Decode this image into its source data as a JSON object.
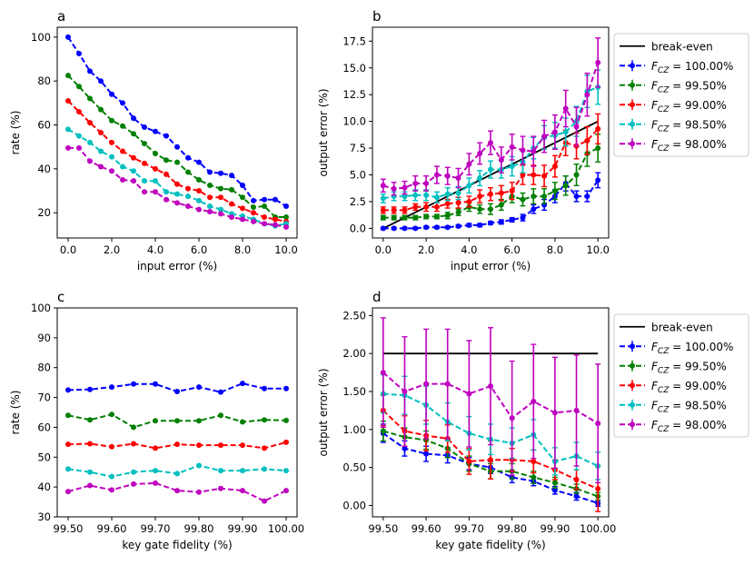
{
  "chart_data": [
    {
      "panel_label": "a",
      "type": "line",
      "xlabel": "input error (%)",
      "ylabel": "rate (%)",
      "xlim": [
        -0.5,
        10.5
      ],
      "ylim": [
        8.5,
        104.5
      ],
      "xticks": [
        0,
        2,
        4,
        6,
        8,
        10
      ],
      "xtick_labels": [
        "0.0",
        "2.0",
        "4.0",
        "6.0",
        "8.0",
        "10.0"
      ],
      "yticks": [
        20,
        40,
        60,
        80,
        100
      ],
      "ytick_labels": [
        "20",
        "40",
        "60",
        "80",
        "100"
      ],
      "x": [
        0,
        0.5,
        1,
        1.5,
        2,
        2.5,
        3,
        3.5,
        4,
        4.5,
        5,
        5.5,
        6,
        6.5,
        7,
        7.5,
        8,
        8.5,
        9,
        9.5,
        10
      ],
      "series": [
        {
          "color": "#0000ff",
          "values": [
            100,
            92.5,
            84.5,
            80,
            74,
            70,
            63,
            59,
            57,
            55,
            50,
            45,
            43,
            38.5,
            38,
            37,
            32.5,
            25.5,
            26,
            26,
            23
          ]
        },
        {
          "color": "#008000",
          "values": [
            82.5,
            77.5,
            72,
            67,
            62,
            59.5,
            56,
            51.5,
            47,
            44,
            43,
            38.5,
            35,
            32.5,
            31,
            30.5,
            27,
            22.5,
            23,
            18,
            18
          ]
        },
        {
          "color": "#ff0000",
          "values": [
            71,
            66,
            61,
            56.5,
            52,
            48,
            45,
            42.5,
            40,
            37.5,
            33,
            31,
            30,
            27,
            27,
            24,
            22,
            20,
            18,
            17,
            16
          ]
        },
        {
          "color": "#00bfbf",
          "values": [
            58,
            55,
            52,
            48,
            45.5,
            41,
            39,
            34.5,
            34.5,
            29.5,
            28.5,
            27.5,
            25.5,
            23,
            21.5,
            19.5,
            18.5,
            17,
            15,
            14,
            15
          ]
        },
        {
          "color": "#bf00bf",
          "values": [
            49.5,
            49.5,
            43.5,
            41,
            39,
            35,
            34.5,
            29.5,
            29.5,
            26,
            24.5,
            23,
            21.5,
            20.5,
            19.5,
            18,
            17,
            16,
            15,
            14.5,
            13.5
          ]
        }
      ]
    },
    {
      "panel_label": "b",
      "type": "line",
      "xlabel": "input error (%)",
      "ylabel": "output error (%)",
      "xlim": [
        -0.5,
        10.5
      ],
      "ylim": [
        -0.9,
        18.8
      ],
      "xticks": [
        0,
        2,
        4,
        6,
        8,
        10
      ],
      "xtick_labels": [
        "0.0",
        "2.0",
        "4.0",
        "6.0",
        "8.0",
        "10.0"
      ],
      "yticks": [
        0,
        2.5,
        5,
        7.5,
        10,
        12.5,
        15,
        17.5
      ],
      "ytick_labels": [
        "0.0",
        "2.5",
        "5.0",
        "7.5",
        "10.0",
        "12.5",
        "15.0",
        "17.5"
      ],
      "x": [
        0,
        0.5,
        1,
        1.5,
        2,
        2.5,
        3,
        3.5,
        4,
        4.5,
        5,
        5.5,
        6,
        6.5,
        7,
        7.5,
        8,
        8.5,
        9,
        9.5,
        10
      ],
      "breakeven": {
        "name": "break-even",
        "x": [
          0,
          10
        ],
        "y": [
          0,
          10
        ]
      },
      "series": [
        {
          "name": "100.00%",
          "color": "#0000ff",
          "values": [
            0,
            0,
            0,
            0,
            0.1,
            0.1,
            0.1,
            0.2,
            0.3,
            0.3,
            0.5,
            0.6,
            0.8,
            1,
            1.8,
            2.2,
            3,
            4.2,
            3,
            3,
            4.5
          ],
          "errors": [
            0.1,
            0.1,
            0.1,
            0.1,
            0.1,
            0.1,
            0.1,
            0.1,
            0.15,
            0.15,
            0.15,
            0.2,
            0.2,
            0.3,
            0.4,
            0.5,
            0.6,
            0.7,
            0.5,
            0.5,
            0.7
          ]
        },
        {
          "name": "99.50%",
          "color": "#008000",
          "values": [
            1,
            1,
            1,
            1,
            1.1,
            1.1,
            1.2,
            1.5,
            2,
            1.8,
            1.8,
            2.2,
            3,
            2.7,
            3,
            3,
            3.5,
            4,
            5,
            7,
            7.5
          ],
          "errors": [
            0.2,
            0.2,
            0.2,
            0.2,
            0.2,
            0.2,
            0.3,
            0.3,
            0.4,
            0.4,
            0.5,
            0.5,
            0.6,
            0.6,
            0.7,
            0.7,
            0.8,
            0.9,
            1,
            1.2,
            1.3
          ]
        },
        {
          "name": "99.00%",
          "color": "#ff0000",
          "values": [
            1.7,
            1.7,
            1.7,
            2,
            2,
            2,
            2.3,
            2.4,
            2.5,
            3,
            3.2,
            3.3,
            3.5,
            5,
            5,
            4.9,
            5.8,
            8,
            7.7,
            8.2,
            9.3
          ],
          "errors": [
            0.3,
            0.3,
            0.3,
            0.3,
            0.4,
            0.4,
            0.4,
            0.5,
            0.5,
            0.6,
            0.6,
            0.7,
            0.8,
            0.9,
            0.9,
            1,
            1,
            1.2,
            1.2,
            1.3,
            1.4
          ]
        },
        {
          "name": "98.50%",
          "color": "#00bfbf",
          "values": [
            2.8,
            3,
            3,
            3.1,
            3.1,
            2.9,
            3.2,
            3.3,
            4,
            4.7,
            5.5,
            5.5,
            5.8,
            6.2,
            7.5,
            8.5,
            8.7,
            9,
            10,
            12.8,
            13.2
          ],
          "errors": [
            0.4,
            0.4,
            0.4,
            0.5,
            0.5,
            0.5,
            0.6,
            0.6,
            0.7,
            0.7,
            0.8,
            0.8,
            0.9,
            1,
            1,
            1.1,
            1.2,
            1.3,
            1.4,
            1.5,
            1.6
          ]
        },
        {
          "name": "98.00%",
          "color": "#bf00bf",
          "values": [
            4,
            3.7,
            3.8,
            4.2,
            4.2,
            5,
            4.9,
            4.7,
            6,
            7,
            8,
            6.4,
            7.6,
            7.3,
            7.2,
            8.6,
            9,
            11.2,
            9.5,
            12.5,
            15.5
          ],
          "errors": [
            0.6,
            0.6,
            0.6,
            0.7,
            0.7,
            0.8,
            0.8,
            0.9,
            1,
            1,
            1.1,
            1.2,
            1.2,
            1.3,
            1.4,
            1.5,
            1.6,
            1.7,
            1.8,
            2,
            2.3
          ]
        }
      ],
      "legend": {
        "position": "outside-right",
        "break_even_label": "break-even",
        "series_label_prefix": "F",
        "series_label_subscript": "CZ",
        "series_label_eq": " = "
      }
    },
    {
      "panel_label": "c",
      "type": "line",
      "xlabel": "key gate fidelity (%)",
      "ylabel": "rate (%)",
      "xlim": [
        99.475,
        100.025
      ],
      "ylim": [
        30,
        100
      ],
      "xticks": [
        99.5,
        99.6,
        99.7,
        99.8,
        99.9,
        100
      ],
      "xtick_labels": [
        "99.50",
        "99.60",
        "99.70",
        "99.80",
        "99.90",
        "100.00"
      ],
      "yticks": [
        30,
        40,
        50,
        60,
        70,
        80,
        90,
        100
      ],
      "ytick_labels": [
        "30",
        "40",
        "50",
        "60",
        "70",
        "80",
        "90",
        "100"
      ],
      "x": [
        99.5,
        99.55,
        99.6,
        99.65,
        99.7,
        99.75,
        99.8,
        99.85,
        99.9,
        99.95,
        100
      ],
      "series": [
        {
          "color": "#0000ff",
          "values": [
            72.5,
            72.7,
            73.5,
            74.5,
            74.5,
            72,
            73.5,
            71.8,
            74.7,
            73,
            73
          ]
        },
        {
          "color": "#008000",
          "values": [
            64,
            62.5,
            64.3,
            60,
            62.2,
            62.2,
            62.2,
            64,
            61.8,
            62.5,
            62.3
          ]
        },
        {
          "color": "#ff0000",
          "values": [
            54.3,
            54.5,
            53.5,
            54.5,
            53,
            54.3,
            54,
            54,
            54,
            53,
            55
          ]
        },
        {
          "color": "#00bfbf",
          "values": [
            46,
            45,
            43.5,
            45,
            45.5,
            44.5,
            47.2,
            45.5,
            45.5,
            46,
            45.5
          ]
        },
        {
          "color": "#bf00bf",
          "values": [
            38.5,
            40.5,
            39,
            41,
            41.3,
            38.8,
            38.3,
            39.5,
            38.8,
            35.3,
            38.8
          ]
        }
      ]
    },
    {
      "panel_label": "d",
      "type": "line",
      "xlabel": "key gate fidelity (%)",
      "ylabel": "output error (%)",
      "xlim": [
        99.475,
        100.025
      ],
      "ylim": [
        -0.15,
        2.6
      ],
      "xticks": [
        99.5,
        99.6,
        99.7,
        99.8,
        99.9,
        100
      ],
      "xtick_labels": [
        "99.50",
        "99.60",
        "99.70",
        "99.80",
        "99.90",
        "100.00"
      ],
      "yticks": [
        0,
        0.5,
        1,
        1.5,
        2,
        2.5
      ],
      "ytick_labels": [
        "0.00",
        "0.50",
        "1.00",
        "1.50",
        "2.00",
        "2.50"
      ],
      "x": [
        99.5,
        99.55,
        99.6,
        99.65,
        99.7,
        99.75,
        99.8,
        99.85,
        99.9,
        99.95,
        100
      ],
      "breakeven": {
        "name": "break-even",
        "x": [
          99.5,
          100
        ],
        "y": [
          2,
          2
        ]
      },
      "series": [
        {
          "name": "100.00%",
          "color": "#0000ff",
          "values": [
            0.95,
            0.75,
            0.68,
            0.66,
            0.55,
            0.5,
            0.37,
            0.32,
            0.2,
            0.12,
            0.03
          ],
          "errors": [
            0.12,
            0.1,
            0.1,
            0.1,
            0.08,
            0.08,
            0.07,
            0.06,
            0.05,
            0.05,
            0.04
          ]
        },
        {
          "name": "99.50%",
          "color": "#008000",
          "values": [
            0.98,
            0.9,
            0.86,
            0.75,
            0.55,
            0.45,
            0.45,
            0.37,
            0.3,
            0.22,
            0.12
          ],
          "errors": [
            0.13,
            0.12,
            0.12,
            0.12,
            0.1,
            0.1,
            0.1,
            0.08,
            0.07,
            0.06,
            0.05
          ]
        },
        {
          "name": "99.00%",
          "color": "#ff0000",
          "values": [
            1.25,
            0.98,
            0.92,
            0.88,
            0.58,
            0.6,
            0.6,
            0.58,
            0.47,
            0.34,
            0.22
          ],
          "errors": [
            0.2,
            0.2,
            0.2,
            0.18,
            0.17,
            0.25,
            0.15,
            0.15,
            0.13,
            0.13,
            0.3
          ]
        },
        {
          "name": "98.50%",
          "color": "#00bfbf",
          "values": [
            1.47,
            1.45,
            1.32,
            1.1,
            0.95,
            0.87,
            0.82,
            0.93,
            0.58,
            0.65,
            0.52
          ],
          "errors": [
            0.25,
            0.25,
            0.25,
            0.25,
            0.22,
            0.2,
            0.2,
            0.2,
            0.18,
            0.18,
            0.18
          ]
        },
        {
          "name": "98.00%",
          "color": "#bf00bf",
          "values": [
            1.75,
            1.5,
            1.6,
            1.6,
            1.47,
            1.57,
            1.15,
            1.37,
            1.22,
            1.25,
            1.08
          ],
          "errors": [
            0.72,
            0.72,
            0.72,
            0.72,
            0.7,
            0.77,
            0.75,
            0.75,
            0.73,
            0.73,
            0.78
          ]
        }
      ],
      "legend": {
        "position": "outside-right",
        "break_even_label": "break-even",
        "series_label_prefix": "F",
        "series_label_subscript": "CZ",
        "series_label_eq": " = "
      }
    }
  ]
}
